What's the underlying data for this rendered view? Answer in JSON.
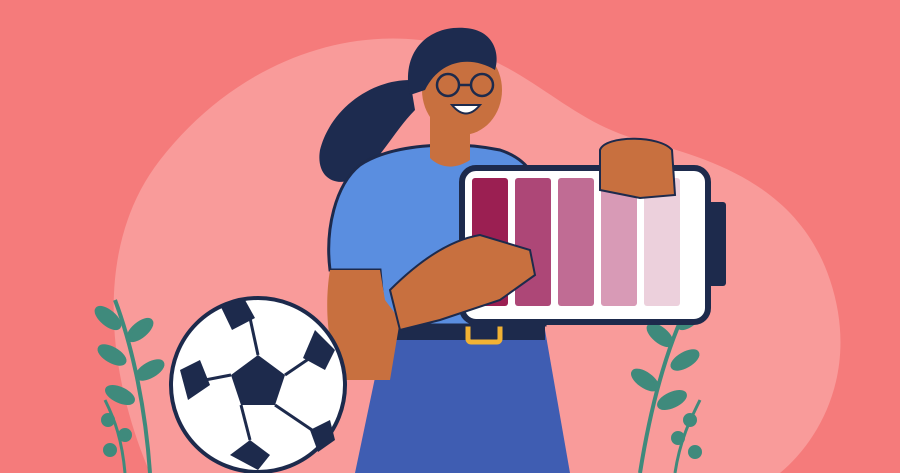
{
  "illustration": {
    "colors": {
      "background": "#f57b7b",
      "blob": "#f99b9a",
      "outline": "#1d2a4c",
      "shirt": "#5a8ee0",
      "skin": "#c8703f",
      "hair": "#1d2b4f",
      "jeans": "#3f5db2",
      "belt_buckle": "#f2b233",
      "leaves": "#3f8a7c",
      "ball_white": "#ffffff"
    },
    "battery": {
      "level_fraction": 1.0,
      "segment_colors": [
        "#9b1f52",
        "#ad4777",
        "#c06c94",
        "#d89ab6",
        "#ecd0dc"
      ]
    },
    "icons": [
      "battery-icon",
      "soccer-ball-icon",
      "plant-icon"
    ]
  }
}
